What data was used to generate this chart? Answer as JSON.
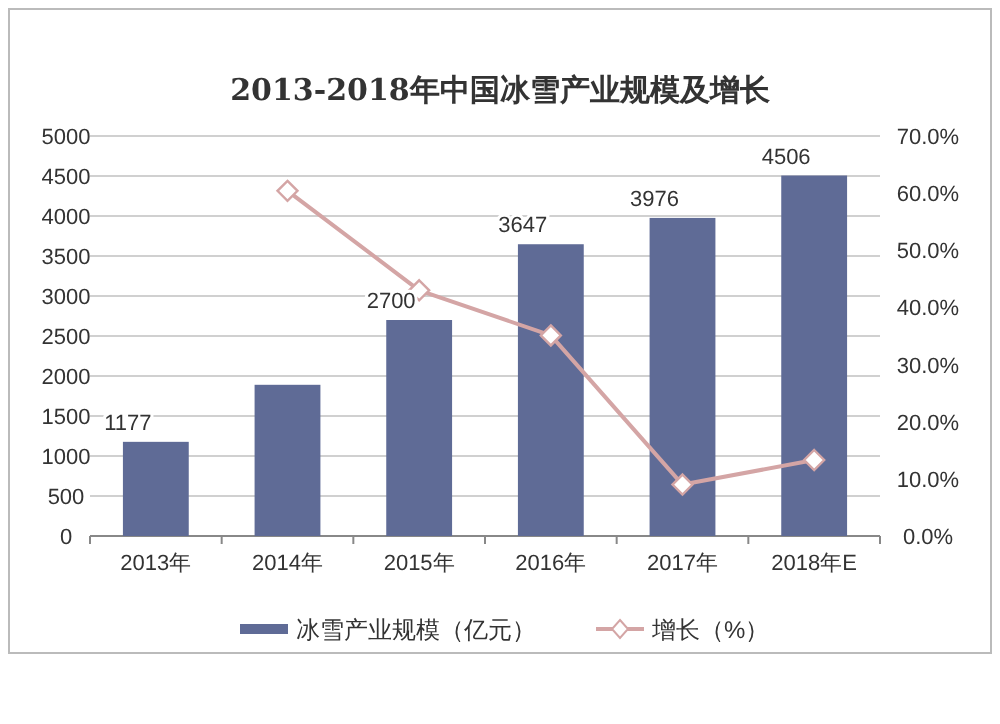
{
  "chart_data": {
    "type": "bar",
    "title": "2013-2018年中国冰雪产业规模及增长",
    "categories": [
      "2013年",
      "2014年",
      "2015年",
      "2016年",
      "2017年",
      "2018年E"
    ],
    "series": [
      {
        "name": "冰雪产业规模（亿元）",
        "color": "#5f6b96",
        "values": [
          1177,
          1890,
          2700,
          3647,
          3976,
          4506
        ],
        "value_labels": [
          "1177",
          null,
          "2700",
          "3647",
          "3976",
          "4506"
        ]
      },
      {
        "name": "增长（%）",
        "type": "line",
        "axis": "y2",
        "color": "#d4a5a5",
        "values": [
          null,
          60.4,
          43,
          35.1,
          9,
          13.3
        ]
      }
    ],
    "ylim": [
      0,
      5000
    ],
    "yticks": [
      0,
      500,
      1000,
      1500,
      2000,
      2500,
      3000,
      3500,
      4000,
      4500,
      5000
    ],
    "y2lim": [
      0,
      70
    ],
    "y2ticks": [
      {
        "value": 0,
        "label": "0.0%"
      },
      {
        "value": 10,
        "label": "10.0%"
      },
      {
        "value": 20,
        "label": "20.0%"
      },
      {
        "value": 30,
        "label": "30.0%"
      },
      {
        "value": 40,
        "label": "40.0%"
      },
      {
        "value": 50,
        "label": "50.0%"
      },
      {
        "value": 60,
        "label": "60.0%"
      },
      {
        "value": 70,
        "label": "70.0%"
      }
    ],
    "grid": "y",
    "legend": "bottom",
    "marker": "diamond"
  }
}
